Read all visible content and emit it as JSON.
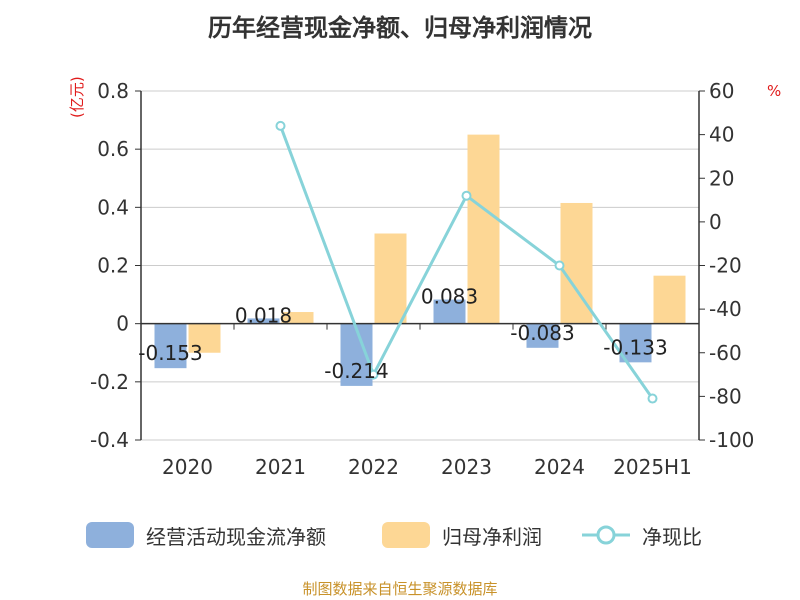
{
  "chart_data": {
    "type": "bar",
    "title": "历年经营现金净额、归母净利润情况",
    "categories": [
      "2020",
      "2021",
      "2022",
      "2023",
      "2024",
      "2025H1"
    ],
    "left_axis": {
      "unit": "(亿元)",
      "ylim": [
        -0.4,
        0.8
      ],
      "ticks": [
        "0.8",
        "0.6",
        "0.4",
        "0.2",
        "0",
        "-0.2",
        "-0.4"
      ],
      "tick_values": [
        0.8,
        0.6,
        0.4,
        0.2,
        0,
        -0.2,
        -0.4
      ]
    },
    "right_axis": {
      "unit": "%",
      "ylim": [
        -100,
        60
      ],
      "ticks": [
        "60",
        "40",
        "20",
        "0",
        "-20",
        "-40",
        "-60",
        "-80",
        "-100"
      ],
      "tick_values": [
        60,
        40,
        20,
        0,
        -20,
        -40,
        -60,
        -80,
        -100
      ]
    },
    "grid": true,
    "legend_position": "bottom",
    "series": [
      {
        "name": "经营活动现金流净额",
        "type": "bar",
        "axis": "left",
        "color": "#8eb0dc",
        "values": [
          -0.153,
          0.018,
          -0.214,
          0.083,
          -0.083,
          -0.133
        ],
        "labels": [
          "-0.153",
          "0.018",
          "-0.214",
          "0.083",
          "-0.083",
          "-0.133"
        ]
      },
      {
        "name": "归母净利润",
        "type": "bar",
        "axis": "left",
        "color": "#fdd795",
        "values": [
          -0.1,
          0.04,
          0.31,
          0.65,
          0.415,
          0.165
        ]
      },
      {
        "name": "净现比",
        "type": "line",
        "axis": "right",
        "color": "#87d3d9",
        "values": [
          null,
          44,
          -70,
          12,
          -20,
          -81
        ]
      }
    ]
  },
  "legend": {
    "items": [
      "经营活动现金流净额",
      "归母净利润",
      "净现比"
    ]
  },
  "source": "制图数据来自恒生聚源数据库"
}
